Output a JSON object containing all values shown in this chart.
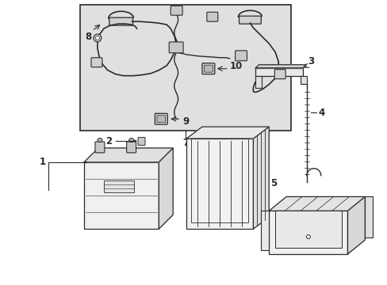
{
  "bg_color": "#ffffff",
  "line_color": "#2a2a2a",
  "gray_fill": "#e8e8e8",
  "inset_fill": "#e0e0e0",
  "figsize": [
    4.89,
    3.6
  ],
  "dpi": 100
}
